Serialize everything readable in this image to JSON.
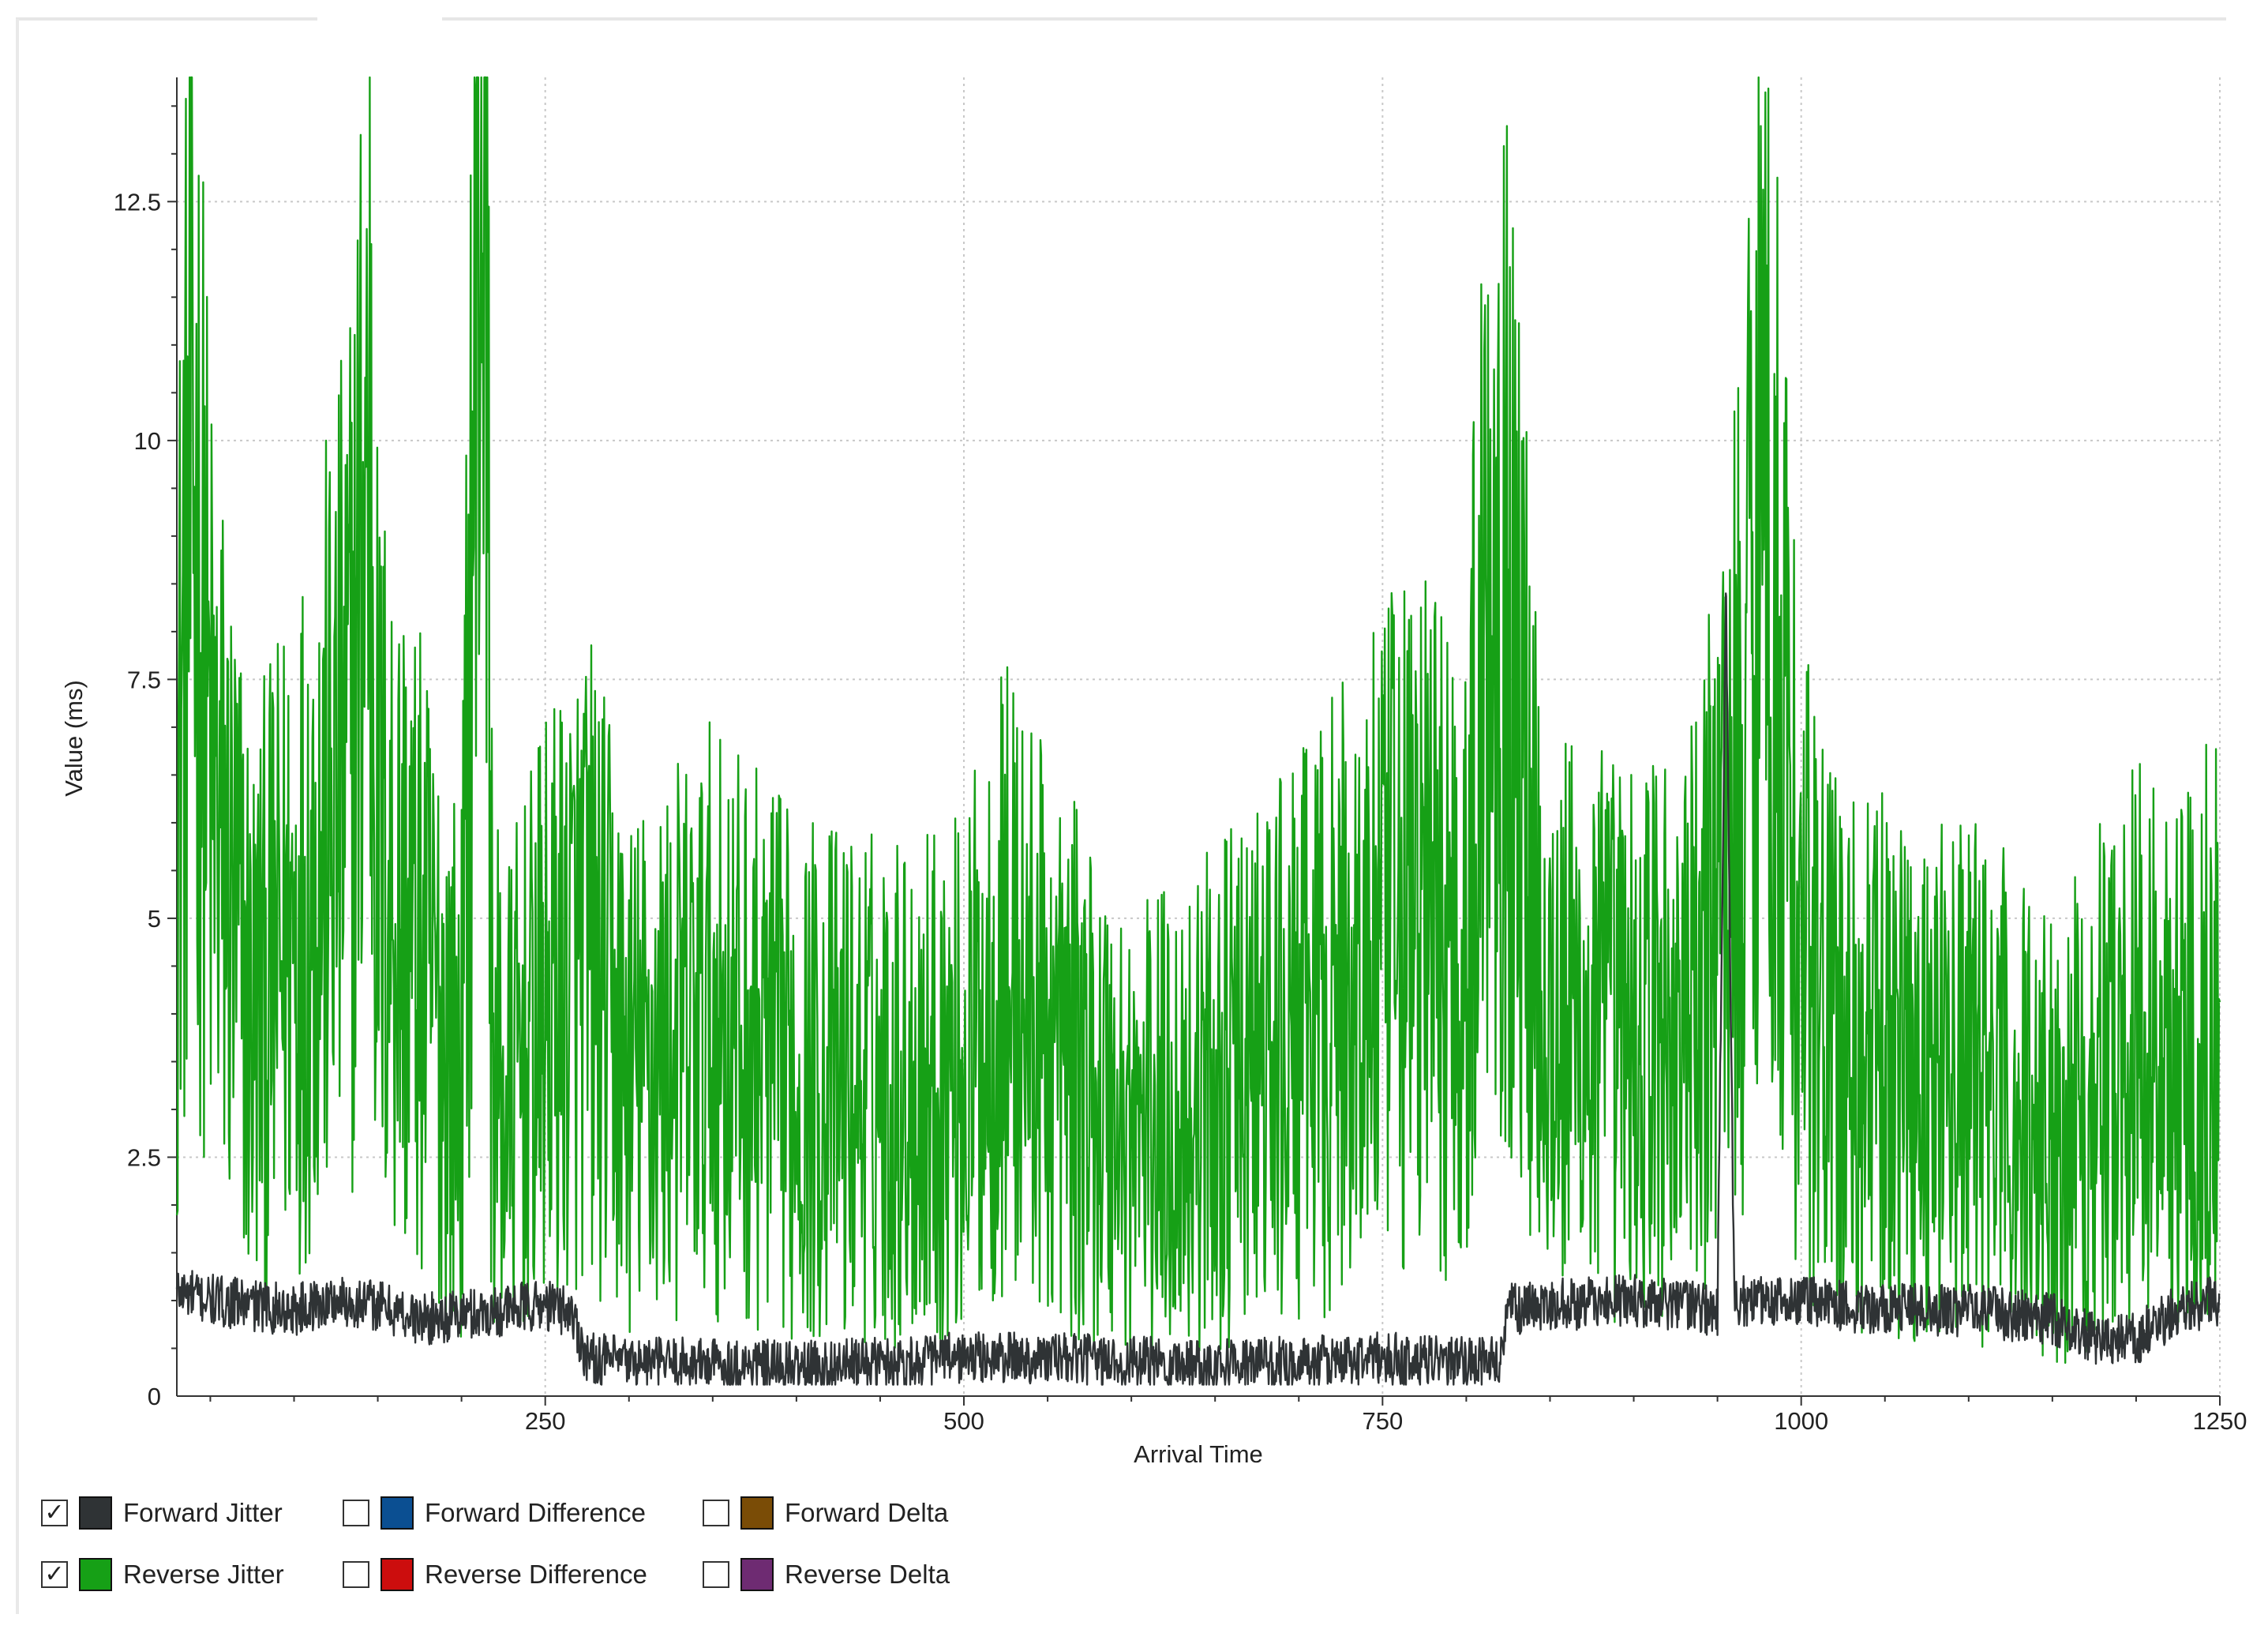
{
  "chart_data": {
    "type": "line",
    "xlabel": "Arrival Time",
    "ylabel": "Value (ms)",
    "xlim": [
      30,
      1250
    ],
    "ylim": [
      0,
      13.8
    ],
    "x_ticks": [
      250,
      500,
      750,
      1000,
      1250
    ],
    "x_tick_labels": [
      "250",
      "500",
      "750",
      "1000",
      "1250"
    ],
    "y_ticks": [
      0,
      2.5,
      5,
      7.5,
      10,
      12.5
    ],
    "y_tick_labels": [
      "0",
      "2.5",
      "5",
      "7.5",
      "10",
      "12.5"
    ],
    "grid": true,
    "legend_position": "bottom-left",
    "series": [
      {
        "name": "Forward Jitter",
        "color": "#2f3335",
        "visible": true,
        "x": [
          30,
          50,
          75,
          100,
          125,
          150,
          175,
          200,
          225,
          250,
          265,
          275,
          300,
          350,
          400,
          450,
          500,
          550,
          600,
          650,
          700,
          750,
          790,
          820,
          825,
          850,
          900,
          950,
          955,
          960,
          1000,
          1025,
          1050,
          1100,
          1150,
          1175,
          1200,
          1225,
          1250
        ],
        "values": [
          1.1,
          1.0,
          0.95,
          0.9,
          1.0,
          0.95,
          0.8,
          0.85,
          0.9,
          0.95,
          0.9,
          0.4,
          0.35,
          0.35,
          0.3,
          0.35,
          0.4,
          0.4,
          0.35,
          0.35,
          0.35,
          0.4,
          0.35,
          0.35,
          0.9,
          0.95,
          1.0,
          0.9,
          8.4,
          1.0,
          1.0,
          0.95,
          0.9,
          0.9,
          0.8,
          0.6,
          0.6,
          0.9,
          1.0
        ]
      },
      {
        "name": "Reverse Jitter",
        "color": "#16a016",
        "visible": true,
        "x": [
          30,
          35,
          40,
          50,
          75,
          100,
          125,
          135,
          145,
          150,
          175,
          200,
          215,
          217,
          220,
          225,
          250,
          275,
          300,
          350,
          400,
          450,
          500,
          525,
          550,
          600,
          650,
          700,
          750,
          775,
          800,
          815,
          850,
          900,
          940,
          950,
          965,
          975,
          1000,
          1025,
          1050,
          1100,
          1150,
          1200,
          1225,
          1250
        ],
        "values": [
          4.8,
          6.5,
          7.7,
          5.0,
          3.0,
          3.8,
          4.8,
          5.5,
          8.2,
          4.5,
          3.5,
          2.5,
          13.7,
          3.5,
          2.5,
          2.2,
          3.0,
          3.6,
          2.5,
          3.0,
          2.5,
          2.4,
          2.5,
          3.4,
          2.8,
          2.0,
          2.3,
          2.8,
          3.6,
          4.0,
          3.5,
          7.5,
          3.0,
          2.8,
          3.0,
          4.5,
          5.0,
          8.1,
          3.5,
          2.6,
          2.6,
          2.5,
          2.0,
          2.8,
          2.6,
          3.2
        ]
      },
      {
        "name": "Forward Difference",
        "color": "#0b4f92",
        "visible": false,
        "x": [],
        "values": []
      },
      {
        "name": "Reverse Difference",
        "color": "#cc0d0d",
        "visible": false,
        "x": [],
        "values": []
      },
      {
        "name": "Forward Delta",
        "color": "#7a4c06",
        "visible": false,
        "x": [],
        "values": []
      },
      {
        "name": "Reverse Delta",
        "color": "#6e2b72",
        "visible": false,
        "x": [],
        "values": []
      }
    ]
  },
  "legend": {
    "items": [
      {
        "label": "Forward Jitter",
        "checked": true,
        "mark": "✓",
        "color": "#2f3335"
      },
      {
        "label": "Forward Difference",
        "checked": false,
        "mark": "",
        "color": "#0b4f92"
      },
      {
        "label": "Forward Delta",
        "checked": false,
        "mark": "",
        "color": "#7a4c06"
      },
      {
        "label": "Reverse Jitter",
        "checked": true,
        "mark": "✓",
        "color": "#16a016"
      },
      {
        "label": "Reverse Difference",
        "checked": false,
        "mark": "",
        "color": "#cc0d0d"
      },
      {
        "label": "Reverse Delta",
        "checked": false,
        "mark": "",
        "color": "#6e2b72"
      }
    ]
  }
}
